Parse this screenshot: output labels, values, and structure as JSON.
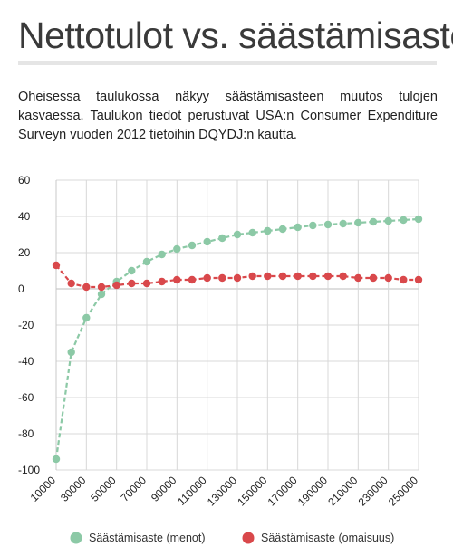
{
  "page": {
    "title": "Nettotulot vs. säästämisaste",
    "intro": "Oheisessa taulukossa näkyy säästämisasteen muutos tulojen kasvaessa. Taulukon tiedot perustuvat USA:n Consumer Expenditure Surveyn vuoden 2012 tietoihin DQYDJ:n kautta."
  },
  "chart_data": {
    "type": "line",
    "title": "",
    "xlabel": "",
    "ylabel": "",
    "x": [
      10000,
      20000,
      30000,
      40000,
      50000,
      60000,
      70000,
      80000,
      90000,
      100000,
      110000,
      120000,
      130000,
      140000,
      150000,
      160000,
      170000,
      180000,
      190000,
      200000,
      210000,
      220000,
      230000,
      240000,
      250000
    ],
    "x_tick_labels": [
      "10000",
      "30000",
      "50000",
      "70000",
      "90000",
      "110000",
      "130000",
      "150000",
      "170000",
      "190000",
      "210000",
      "230000",
      "250000"
    ],
    "ylim": [
      -100,
      60
    ],
    "y_ticks": [
      60,
      40,
      20,
      0,
      -20,
      -40,
      -60,
      -80,
      -100
    ],
    "y_tick_labels": [
      "60",
      "40",
      "20",
      "0",
      "-20",
      "-40",
      "-60",
      "-80",
      "-100"
    ],
    "grid": true,
    "legend_position": "bottom",
    "series": [
      {
        "name": "Säästämisaste (menot)",
        "color": "#8cc9a6",
        "values": [
          -94,
          -35,
          -16,
          -3,
          4,
          10,
          15,
          19,
          22,
          24,
          26,
          28,
          30,
          31,
          32,
          33,
          34,
          35,
          35.5,
          36,
          36.5,
          37,
          37.5,
          38,
          38.5
        ]
      },
      {
        "name": "Säästämisaste (omaisuus)",
        "color": "#d9484b",
        "values": [
          13,
          3,
          1,
          1,
          2,
          3,
          3,
          4,
          5,
          5,
          6,
          6,
          6,
          7,
          7,
          7,
          7,
          7,
          7,
          7,
          6,
          6,
          6,
          5,
          5
        ]
      }
    ]
  }
}
